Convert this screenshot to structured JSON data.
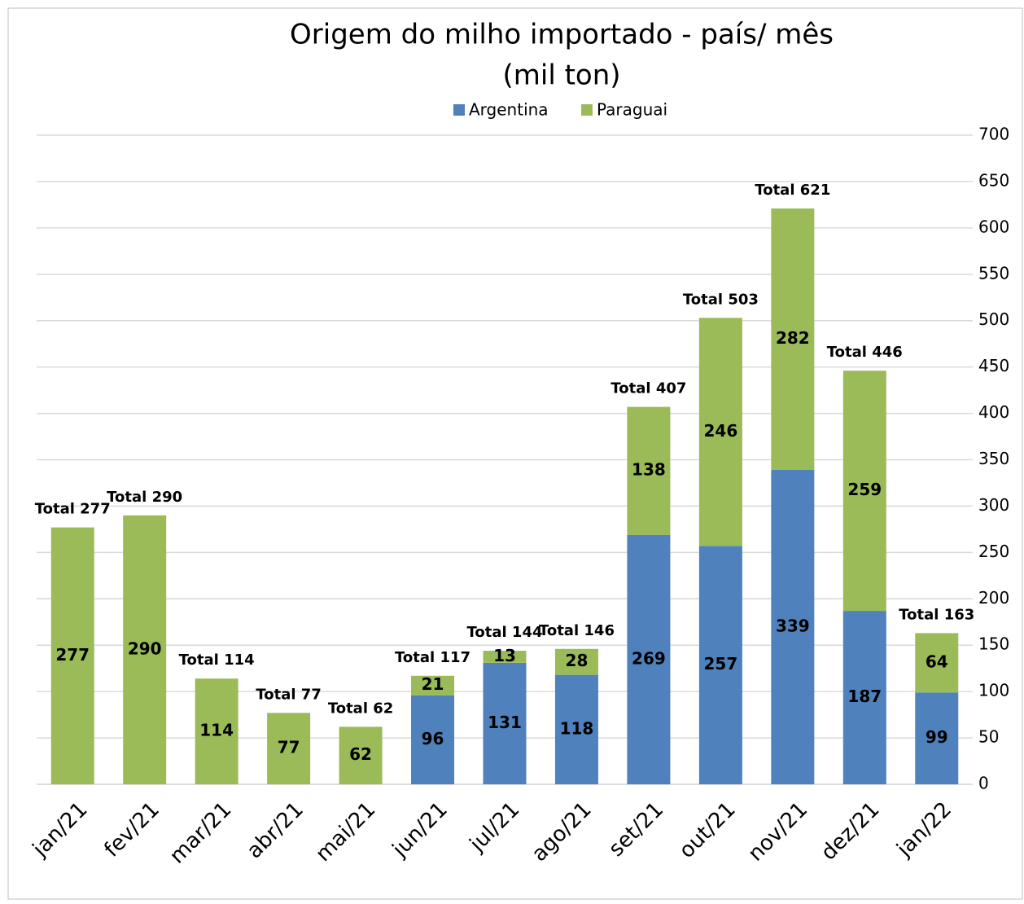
{
  "chart_data": {
    "type": "stacked_bar",
    "title": "Origem do milho importado - país/ mês",
    "subtitle": "(mil ton)",
    "categories": [
      "jan/21",
      "fev/21",
      "mar/21",
      "abr/21",
      "mai/21",
      "jun/21",
      "jul/21",
      "ago/21",
      "set/21",
      "out/21",
      "nov/21",
      "dez/21",
      "jan/22"
    ],
    "series": [
      {
        "name": "Argentina",
        "color": "#4f81bd",
        "values": [
          0,
          0,
          0,
          0,
          0,
          96,
          131,
          118,
          269,
          257,
          339,
          187,
          99
        ]
      },
      {
        "name": "Paraguai",
        "color": "#9bbb59",
        "values": [
          277,
          290,
          114,
          77,
          62,
          21,
          13,
          28,
          138,
          246,
          282,
          259,
          64
        ]
      }
    ],
    "total_labels": [
      "Total 277",
      "Total 290",
      "Total 114",
      "Total 77",
      "Total 62",
      "Total 117",
      "Total 144",
      "Total 146",
      "Total 407",
      "Total 503",
      "Total 621",
      "Total 446",
      "Total 163"
    ],
    "ylim": [
      0,
      700
    ],
    "yticks": [
      0,
      50,
      100,
      150,
      200,
      250,
      300,
      350,
      400,
      450,
      500,
      550,
      600,
      650,
      700
    ],
    "grid": true,
    "legend": "top"
  }
}
